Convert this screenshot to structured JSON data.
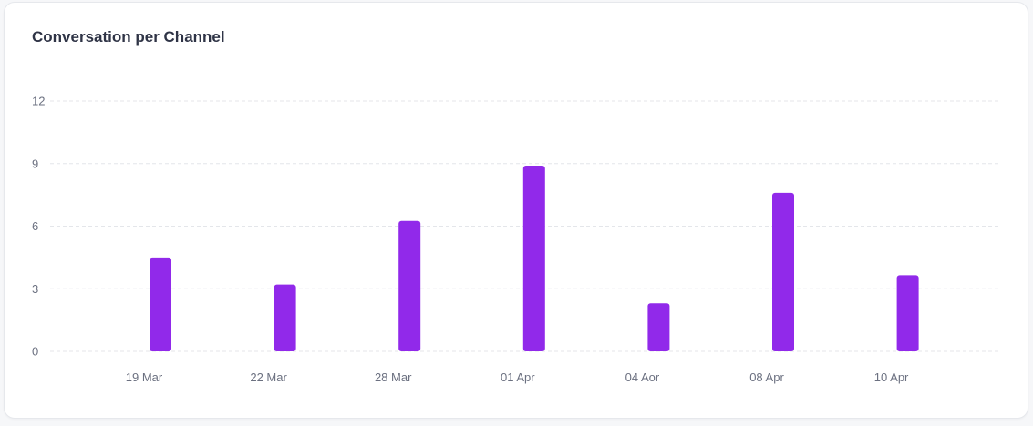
{
  "card": {
    "title": "Conversation per Channel"
  },
  "chart_data": {
    "type": "bar",
    "categories": [
      "19 Mar",
      "22 Mar",
      "28 Mar",
      "01 Apr",
      "04 Aor",
      "08 Apr",
      "10 Apr"
    ],
    "values": [
      4.5,
      3.2,
      6.25,
      8.9,
      2.3,
      7.6,
      3.65
    ],
    "yticks": [
      0,
      3,
      6,
      9,
      12
    ],
    "ylim": [
      0,
      12
    ],
    "grid": true,
    "legend": "none",
    "bar_color": "#9129ea",
    "title": "Conversation per Channel",
    "xlabel": "",
    "ylabel": ""
  }
}
